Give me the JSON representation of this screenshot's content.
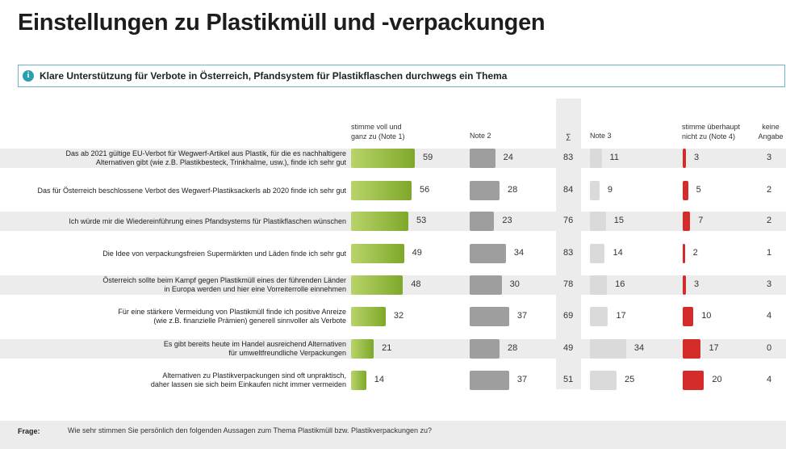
{
  "title": "Einstellungen zu Plastikmüll und -verpackungen",
  "info": {
    "icon": "info-icon",
    "text": "Klare Unterstützung für Verbote in Österreich, Pfandsystem für Plastikflaschen durchwegs ein Thema"
  },
  "headers": {
    "note1": "stimme voll und ganz zu (Note 1)",
    "note2": "Note 2",
    "sum": "∑",
    "note3": "Note 3",
    "note4": "stimme überhaupt nicht zu (Note 4)",
    "none": "keine Angabe"
  },
  "colors": {
    "note1": "#8db33a",
    "note2": "#9e9e9e",
    "note3": "#dadada",
    "note4": "#d42b2b",
    "stripe": "#ececec"
  },
  "chart_data": {
    "type": "bar",
    "stacked": false,
    "categories": [
      "Das ab 2021 gültige EU-Verbot für Wegwerf-Artikel aus Plastik, für die es nachhaltigere\nAlternativen gibt (wie z.B. Plastikbesteck, Trinkhalme, usw.), finde ich sehr gut",
      "Das für Österreich beschlossene Verbot des Wegwerf-Plastiksackerls ab 2020 finde ich sehr gut",
      "Ich würde mir die Wiedereinführung eines Pfandsystems für Plastikflaschen wünschen",
      "Die Idee von verpackungsfreien Supermärkten und Läden finde ich sehr gut",
      "Österreich sollte beim Kampf gegen Plastikmüll eines der führenden Länder\nin Europa werden und hier eine Vorreiterrolle einnehmen",
      "Für eine stärkere Vermeidung von Plastikmüll finde ich positive Anreize\n(wie z.B. finanzielle Prämien) generell sinnvoller als Verbote",
      "Es gibt bereits heute im Handel ausreichend Alternativen\nfür umweltfreundliche Verpackungen",
      "Alternativen zu Plastikverpackungen sind oft unpraktisch,\ndaher lassen sie sich beim Einkaufen nicht immer vermeiden"
    ],
    "series": [
      {
        "name": "stimme voll und ganz zu (Note 1)",
        "values": [
          59,
          56,
          53,
          49,
          48,
          32,
          21,
          14
        ]
      },
      {
        "name": "Note 2",
        "values": [
          24,
          28,
          23,
          34,
          30,
          37,
          28,
          37
        ]
      },
      {
        "name": "∑",
        "values": [
          83,
          84,
          76,
          83,
          78,
          69,
          49,
          51
        ]
      },
      {
        "name": "Note 3",
        "values": [
          11,
          9,
          15,
          14,
          16,
          17,
          34,
          25
        ]
      },
      {
        "name": "stimme überhaupt nicht zu (Note 4)",
        "values": [
          3,
          5,
          7,
          2,
          3,
          10,
          17,
          20
        ]
      },
      {
        "name": "keine Angabe",
        "values": [
          3,
          2,
          2,
          1,
          3,
          4,
          0,
          4
        ]
      }
    ]
  },
  "footer": {
    "label": "Frage:",
    "text": "Wie sehr stimmen Sie persönlich den folgenden Aussagen zum Thema Plastikmüll bzw. Plastikverpackungen zu?"
  }
}
